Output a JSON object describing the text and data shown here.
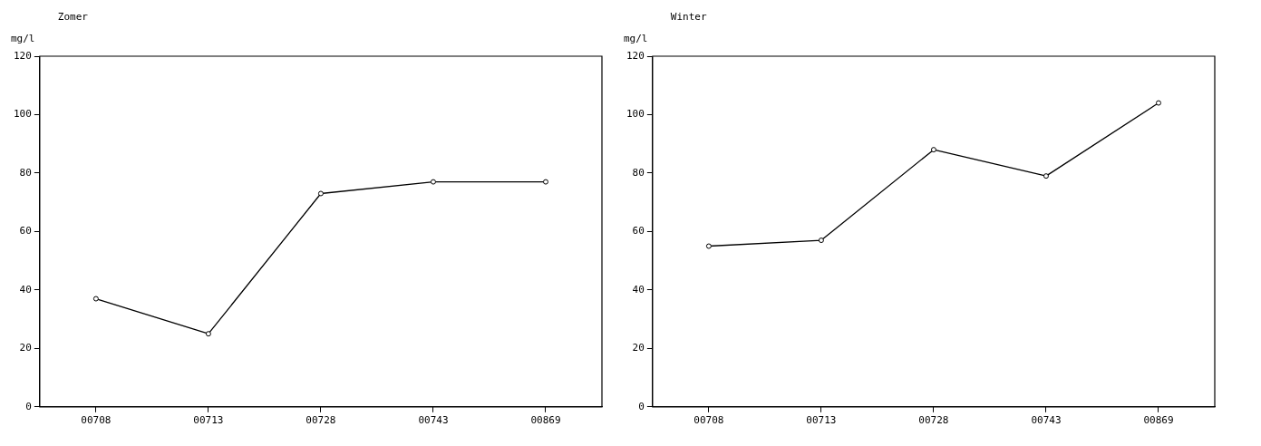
{
  "chart_data": [
    {
      "type": "line",
      "title": "Zomer",
      "ylabel": "mg/l",
      "categories": [
        "00708",
        "00713",
        "00728",
        "00743",
        "00869"
      ],
      "series": [
        {
          "color": "#000000",
          "values": [
            37,
            25,
            73,
            77,
            77
          ]
        }
      ],
      "ylim": [
        0,
        120
      ],
      "yticks": [
        0,
        20,
        40,
        60,
        80,
        100,
        120
      ],
      "grid": false,
      "legend": false,
      "marker": "circle",
      "line_style": "solid"
    },
    {
      "type": "line",
      "title": "Winter",
      "ylabel": "mg/l",
      "categories": [
        "00708",
        "00713",
        "00728",
        "00743",
        "00869"
      ],
      "series": [
        {
          "color": "#000000",
          "values": [
            55,
            57,
            88,
            79,
            104
          ]
        }
      ],
      "ylim": [
        0,
        120
      ],
      "yticks": [
        0,
        20,
        40,
        60,
        80,
        100,
        120
      ],
      "grid": false,
      "legend": false,
      "marker": "circle",
      "line_style": "solid"
    }
  ]
}
